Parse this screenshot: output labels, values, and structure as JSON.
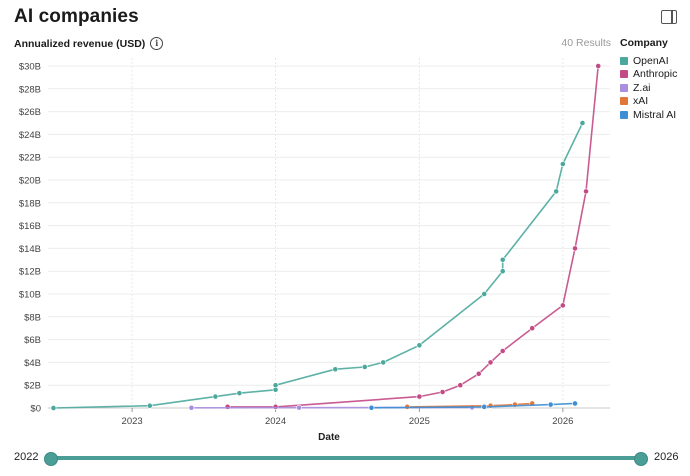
{
  "header": {
    "title": "AI companies"
  },
  "metric_label": "Annualized revenue (USD)",
  "results_label": "40 Results",
  "legend": {
    "title": "Company"
  },
  "slider": {
    "start_label": "2022",
    "end_label": "2026",
    "start_value": 2022,
    "end_value": 2026
  },
  "chart_data": {
    "type": "line",
    "xlabel": "Date",
    "ylabel": "Annualized revenue (USD)",
    "x_range": [
      "2022-06-01",
      "2026-05-01"
    ],
    "x_ticks": [
      {
        "date": "2023-01-01",
        "label": "2023"
      },
      {
        "date": "2024-01-01",
        "label": "2024"
      },
      {
        "date": "2025-01-01",
        "label": "2025"
      },
      {
        "date": "2026-01-01",
        "label": "2026"
      }
    ],
    "ylim": [
      0,
      30
    ],
    "y_ticks": [
      0,
      2,
      4,
      6,
      8,
      10,
      12,
      14,
      16,
      18,
      20,
      22,
      24,
      26,
      28,
      30
    ],
    "y_tick_labels": [
      "$0",
      "$2B",
      "$4B",
      "$6B",
      "$8B",
      "$10B",
      "$12B",
      "$14B",
      "$16B",
      "$18B",
      "$20B",
      "$22B",
      "$24B",
      "$26B",
      "$28B",
      "$30B"
    ],
    "y_unit": "billion USD",
    "grid": true,
    "legend_position": "right",
    "series": [
      {
        "name": "OpenAI",
        "color": "#4ba89c",
        "points": [
          [
            "2022-06-15",
            0
          ],
          [
            "2023-02-15",
            0.2
          ],
          [
            "2023-08-01",
            1.0
          ],
          [
            "2023-10-01",
            1.3
          ],
          [
            "2024-01-01",
            1.6
          ],
          [
            "2024-01-01",
            2.0
          ],
          [
            "2024-06-01",
            3.4
          ],
          [
            "2024-08-15",
            3.6
          ],
          [
            "2024-10-01",
            4.0
          ],
          [
            "2025-01-01",
            5.5
          ],
          [
            "2025-06-15",
            10.0
          ],
          [
            "2025-08-01",
            12.0
          ],
          [
            "2025-08-01",
            13.0
          ],
          [
            "2025-12-15",
            19.0
          ],
          [
            "2026-01-01",
            21.4
          ],
          [
            "2026-02-20",
            25.0
          ]
        ]
      },
      {
        "name": "Anthropic",
        "color": "#c24a86",
        "points": [
          [
            "2023-09-01",
            0.1
          ],
          [
            "2024-01-01",
            0.1
          ],
          [
            "2025-01-01",
            1.0
          ],
          [
            "2025-03-01",
            1.4
          ],
          [
            "2025-04-15",
            2.0
          ],
          [
            "2025-06-01",
            3.0
          ],
          [
            "2025-07-01",
            4.0
          ],
          [
            "2025-08-01",
            5.0
          ],
          [
            "2025-10-15",
            7.0
          ],
          [
            "2026-01-01",
            9.0
          ],
          [
            "2026-02-01",
            14.0
          ],
          [
            "2026-03-01",
            19.0
          ],
          [
            "2026-04-01",
            30.0
          ]
        ]
      },
      {
        "name": "Z.ai",
        "color": "#a98ee0",
        "points": [
          [
            "2023-06-01",
            0.02
          ],
          [
            "2024-03-01",
            0.03
          ],
          [
            "2025-05-15",
            0.05
          ]
        ]
      },
      {
        "name": "xAI",
        "color": "#e2773a",
        "points": [
          [
            "2024-12-01",
            0.1
          ],
          [
            "2025-07-01",
            0.2
          ],
          [
            "2025-09-01",
            0.3
          ],
          [
            "2025-10-15",
            0.4
          ]
        ]
      },
      {
        "name": "Mistral AI",
        "color": "#3d8ed4",
        "points": [
          [
            "2024-09-01",
            0.02
          ],
          [
            "2025-06-15",
            0.1
          ],
          [
            "2025-12-01",
            0.3
          ],
          [
            "2026-02-01",
            0.4
          ]
        ]
      }
    ]
  }
}
